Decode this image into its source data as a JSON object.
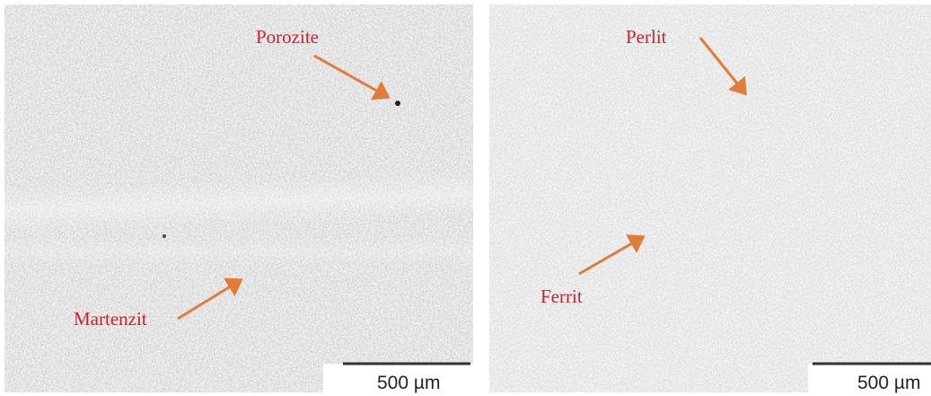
{
  "panels": [
    {
      "labels": [
        "Porozite",
        "Martenzit"
      ],
      "scale_bar": "500 µm"
    },
    {
      "labels": [
        "Perlit",
        "Ferrit"
      ],
      "scale_bar": "500 µm"
    }
  ]
}
